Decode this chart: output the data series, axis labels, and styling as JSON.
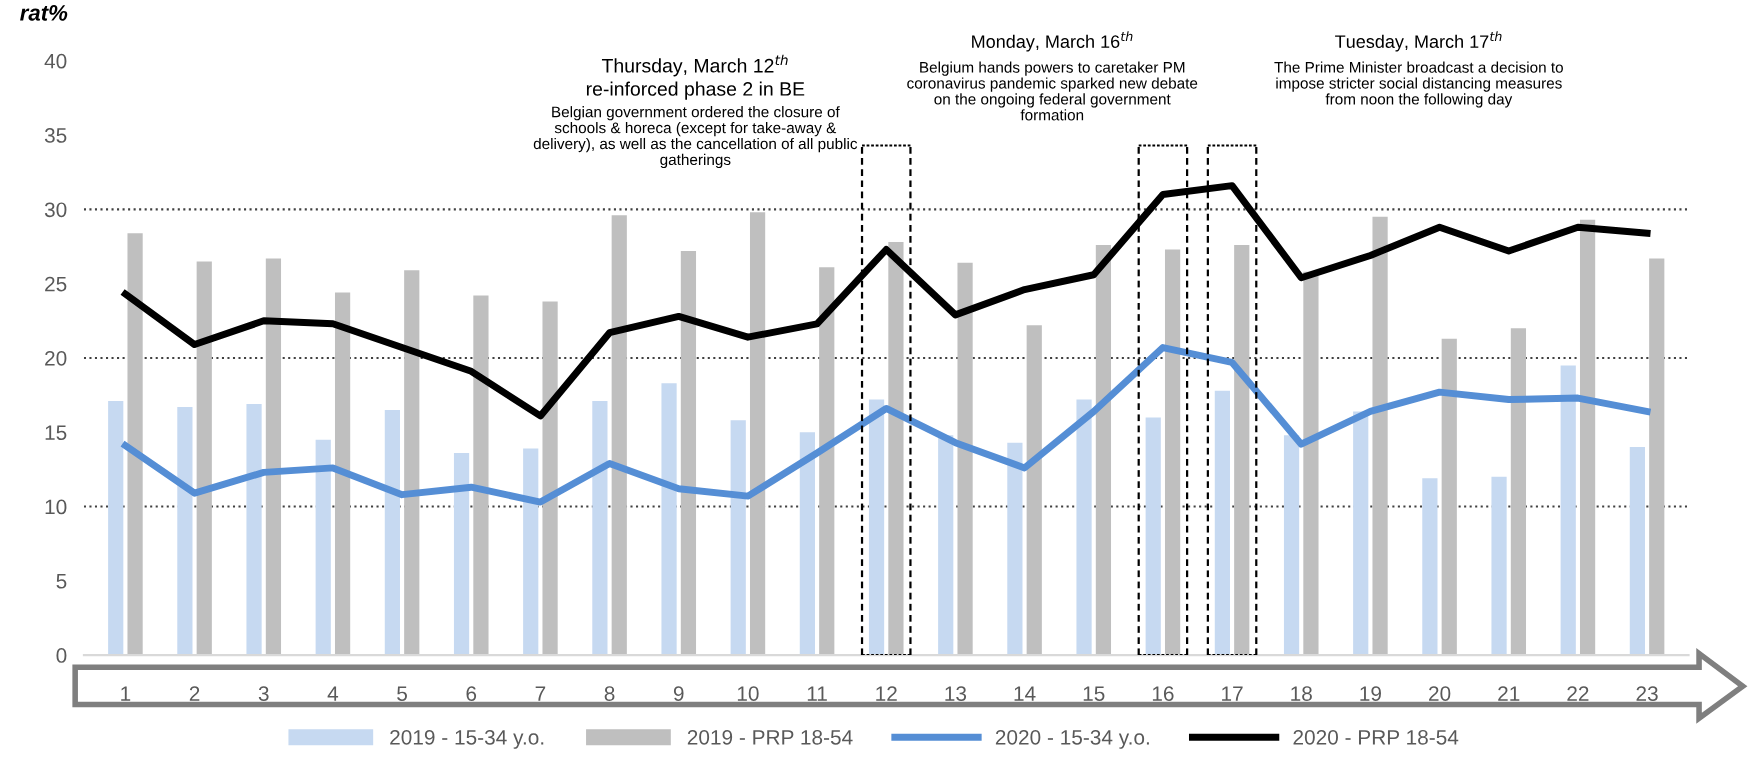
{
  "chart_data": {
    "type": "bar",
    "ylabel": "rat%",
    "categories": [
      "1",
      "2",
      "3",
      "4",
      "5",
      "6",
      "7",
      "8",
      "9",
      "10",
      "11",
      "12",
      "13",
      "14",
      "15",
      "16",
      "17",
      "18",
      "19",
      "20",
      "21",
      "22",
      "23"
    ],
    "series": [
      {
        "name": "2019 - 15-34 y.o.",
        "color": "#c6d9f1",
        "values": [
          17.1,
          16.7,
          16.9,
          14.5,
          16.5,
          13.6,
          13.9,
          17.1,
          18.3,
          15.8,
          15.0,
          17.2,
          14.8,
          14.3,
          17.2,
          16.0,
          17.8,
          14.8,
          16.4,
          11.9,
          12.0,
          19.5,
          14.0
        ]
      },
      {
        "name": "2019 - PRP 18-54",
        "color": "#bfbfbf",
        "values": [
          28.4,
          26.5,
          26.7,
          24.4,
          25.9,
          24.2,
          23.8,
          29.6,
          27.2,
          29.8,
          26.1,
          27.8,
          26.4,
          22.2,
          27.6,
          27.3,
          27.6,
          25.8,
          29.5,
          21.3,
          22.0,
          29.3,
          26.7
        ]
      },
      {
        "name": "2020 - 15-34 y.o.",
        "type": "line",
        "color": "#558ed5",
        "values": [
          14.1,
          10.9,
          12.3,
          12.6,
          10.8,
          11.3,
          10.3,
          12.9,
          11.2,
          10.7,
          13.6,
          16.6,
          14.3,
          12.6,
          16.4,
          20.7,
          19.7,
          14.2,
          16.4,
          17.7,
          17.2,
          17.3,
          16.4
        ]
      },
      {
        "name": "2020 - PRP 18-54",
        "type": "line",
        "color": "#000000",
        "values": [
          24.3,
          20.9,
          22.5,
          22.3,
          20.7,
          19.1,
          16.1,
          21.7,
          22.8,
          21.4,
          22.3,
          27.3,
          22.9,
          24.6,
          25.6,
          31.0,
          31.6,
          25.4,
          26.9,
          28.8,
          27.2,
          28.8,
          28.4
        ]
      }
    ],
    "ylim": [
      0,
      40
    ],
    "yticks": [
      0,
      5,
      10,
      15,
      20,
      25,
      30,
      35,
      40
    ],
    "ref_lines": [
      {
        "axis": "y",
        "value": 10,
        "color": "#404040",
        "line_style": "dotted"
      },
      {
        "axis": "y",
        "value": 20,
        "color": "#404040",
        "line_style": "dotted"
      },
      {
        "axis": "y",
        "value": 30,
        "color": "#404040",
        "line_style": "dotted"
      }
    ],
    "annotations": [
      "Thursday, March 12$^{th}$\nre-inforced phase 2 in BE",
      "Belgian government ordered the closure of\nschools & horeca (except for take-away &\ndelivery), as well as the cancellation of all public\ngatherings",
      "Monday, March 16$^{th}$",
      "Belgium hands powers to caretaker PM\ncoronavirus pandemic sparked new debate\non the ongoing federal government\nformation",
      "Tuesday, March 17$^{th}$",
      "The Prime Minister broadcast a decision to\nimpose stricter social distancing measures\nfrom noon the following day"
    ],
    "legend": "bottom",
    "grid": false,
    "line_style": "solid",
    "marker": "none"
  }
}
